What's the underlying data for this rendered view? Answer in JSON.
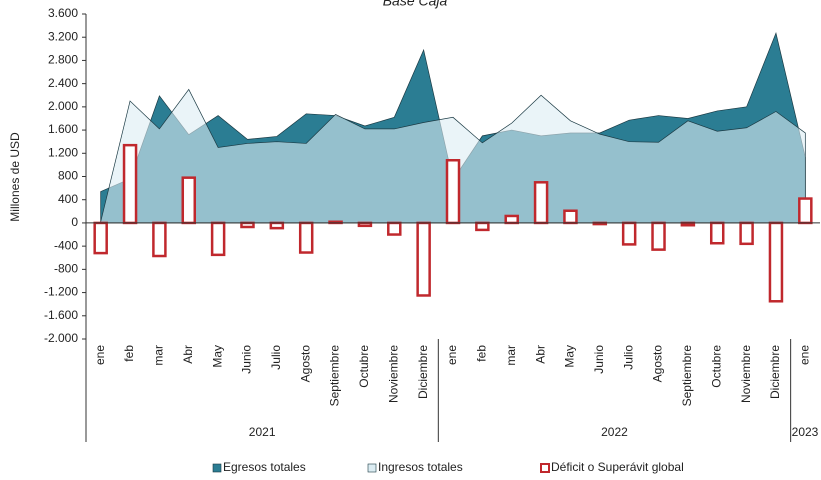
{
  "chart_data": {
    "type": "area-bar",
    "title": "Base Caja",
    "y_label": "Millones de USD",
    "categories": [
      "ene",
      "feb",
      "mar",
      "Abr",
      "May",
      "Junio",
      "Julio",
      "Agosto",
      "Septiembre",
      "Octubre",
      "Noviembre",
      "Diciembre",
      "ene",
      "feb",
      "mar",
      "Abr",
      "May",
      "Junio",
      "Julio",
      "Agosto",
      "Septiembre",
      "Octubre",
      "Noviembre",
      "Diciembre",
      "ene"
    ],
    "year_groups": [
      {
        "name": "2021",
        "count": 12
      },
      {
        "name": "2022",
        "count": 12
      },
      {
        "name": "2023",
        "count": 1
      }
    ],
    "series": [
      {
        "name": "Egresos totales",
        "kind": "area",
        "color": "#2b7d93",
        "values": [
          540,
          760,
          2190,
          1520,
          1850,
          1440,
          1490,
          1880,
          1850,
          1670,
          1820,
          2980,
          740,
          1500,
          1600,
          1500,
          1550,
          1550,
          1770,
          1850,
          1800,
          1930,
          2000,
          3270,
          1130
        ]
      },
      {
        "name": "Ingresos totales",
        "kind": "area",
        "color": "#dcedf3",
        "values": [
          20,
          2100,
          1620,
          2300,
          1300,
          1370,
          1400,
          1370,
          1870,
          1620,
          1620,
          1730,
          1820,
          1380,
          1720,
          2200,
          1760,
          1530,
          1400,
          1390,
          1760,
          1580,
          1640,
          1920,
          1550
        ]
      },
      {
        "name": "Déficit o Superávit global",
        "kind": "bar",
        "color": "#c0282d",
        "values": [
          -520,
          1340,
          -570,
          780,
          -550,
          -70,
          -90,
          -510,
          20,
          -50,
          -200,
          -1250,
          1080,
          -120,
          120,
          700,
          210,
          -20,
          -370,
          -460,
          -40,
          -350,
          -360,
          -1350,
          420
        ]
      }
    ],
    "ylim": [
      -2000,
      3600
    ],
    "yticks": [
      {
        "value": -2000,
        "label": "-2.000"
      },
      {
        "value": -1600,
        "label": "-1.600"
      },
      {
        "value": -1200,
        "label": "-1.200"
      },
      -800,
      -400,
      0,
      400,
      800,
      {
        "value": 1200,
        "label": "1.200"
      },
      {
        "value": 1600,
        "label": "1.600"
      },
      {
        "value": 2000,
        "label": "2.000"
      },
      {
        "value": 2400,
        "label": "2.400"
      },
      {
        "value": 2800,
        "label": "2.800"
      },
      {
        "value": 3200,
        "label": "3.200"
      },
      {
        "value": 3600,
        "label": "3.600"
      }
    ]
  }
}
